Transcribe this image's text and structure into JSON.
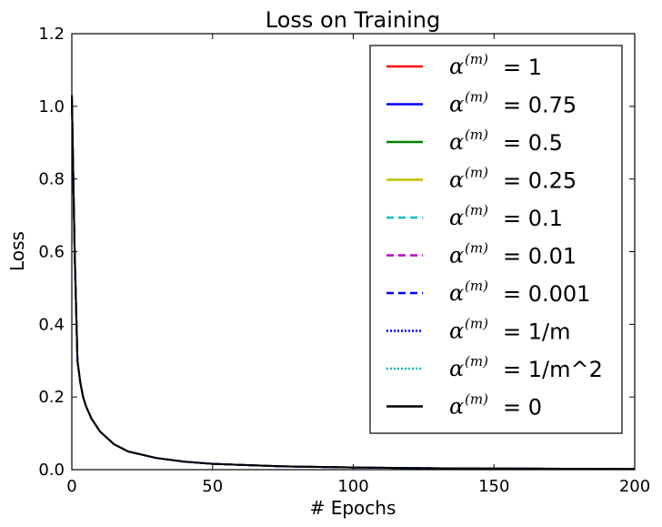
{
  "chart_data": {
    "type": "line",
    "title": "Loss on Training",
    "xlabel": "# Epochs",
    "ylabel": "Loss",
    "xlim": [
      0,
      200
    ],
    "ylim": [
      0.0,
      1.2
    ],
    "xticks": [
      "0",
      "50",
      "100",
      "150",
      "200"
    ],
    "yticks": [
      "0.0",
      "0.2",
      "0.4",
      "0.6",
      "0.8",
      "1.0",
      "1.2"
    ],
    "grid": false,
    "legend_position": "upper right",
    "legend_prefix": "α",
    "legend_superscript": "(m)",
    "series": [
      {
        "name": "= 1",
        "color": "#ff0000",
        "style": "solid"
      },
      {
        "name": "= 0.75",
        "color": "#0000ff",
        "style": "solid"
      },
      {
        "name": "= 0.5",
        "color": "#008000",
        "style": "solid"
      },
      {
        "name": "= 0.25",
        "color": "#bfbf00",
        "style": "solid"
      },
      {
        "name": "= 0.1",
        "color": "#00bfbf",
        "style": "dashed"
      },
      {
        "name": "= 0.01",
        "color": "#bf00bf",
        "style": "dashed"
      },
      {
        "name": "= 0.001",
        "color": "#0000ff",
        "style": "dashed"
      },
      {
        "name": "= 1/m",
        "color": "#0000ff",
        "style": "dotted"
      },
      {
        "name": "= 1/m^2",
        "color": "#00bfbf",
        "style": "dotted"
      },
      {
        "name": "= 0",
        "color": "#000000",
        "style": "solid"
      }
    ],
    "x": [
      0,
      1,
      2,
      3,
      4,
      5,
      7,
      10,
      15,
      20,
      30,
      40,
      50,
      75,
      100,
      125,
      150,
      175,
      200
    ],
    "y": [
      1.03,
      0.6,
      0.3,
      0.24,
      0.2,
      0.175,
      0.14,
      0.105,
      0.07,
      0.05,
      0.032,
      0.022,
      0.016,
      0.009,
      0.006,
      0.004,
      0.003,
      0.0025,
      0.002
    ]
  }
}
